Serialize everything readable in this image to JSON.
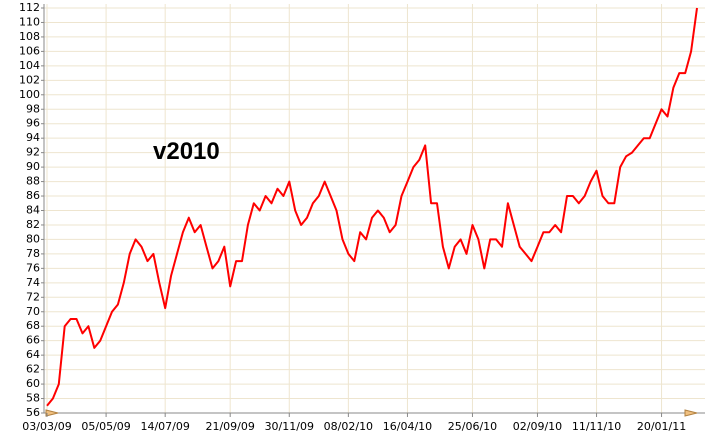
{
  "chart_data": {
    "type": "line",
    "annotation": "v2010",
    "color": "#ff0000",
    "grid": true,
    "categories": [
      "03/03/09",
      null,
      null,
      null,
      null,
      null,
      null,
      null,
      null,
      null,
      "05/05/09",
      null,
      null,
      null,
      null,
      null,
      null,
      null,
      null,
      null,
      "14/07/09",
      null,
      null,
      null,
      null,
      null,
      null,
      null,
      null,
      null,
      null,
      "21/09/09",
      null,
      null,
      null,
      null,
      null,
      null,
      null,
      null,
      null,
      "30/11/09",
      null,
      null,
      null,
      null,
      null,
      null,
      null,
      null,
      null,
      "08/02/10",
      null,
      null,
      null,
      null,
      null,
      null,
      null,
      null,
      null,
      "16/04/10",
      null,
      null,
      null,
      null,
      null,
      null,
      null,
      null,
      null,
      null,
      "25/06/10",
      null,
      null,
      null,
      null,
      null,
      null,
      null,
      null,
      null,
      null,
      "02/09/10",
      null,
      null,
      null,
      null,
      null,
      null,
      null,
      null,
      null,
      "11/11/10",
      null,
      null,
      null,
      null,
      null,
      null,
      null,
      null,
      null,
      null,
      "20/01/11",
      null,
      null,
      null,
      null,
      null,
      null
    ],
    "values": [
      57,
      58,
      60,
      68,
      69,
      69,
      67,
      68,
      65,
      66,
      68,
      70,
      71,
      74,
      78,
      80,
      79,
      77,
      78,
      74,
      70.5,
      75,
      78,
      81,
      83,
      81,
      82,
      79,
      76,
      77,
      79,
      73.5,
      77,
      77,
      82,
      85,
      84,
      86,
      85,
      87,
      86,
      88,
      84,
      82,
      83,
      85,
      86,
      88,
      86,
      84,
      80,
      78,
      77,
      81,
      80,
      83,
      84,
      83,
      81,
      82,
      86,
      88,
      90,
      91,
      93,
      85,
      85,
      79,
      76,
      79,
      80,
      78,
      82,
      80,
      76,
      80,
      80,
      79,
      85,
      82,
      79,
      78,
      77,
      79,
      81,
      81,
      82,
      81,
      86,
      86,
      85,
      86,
      88,
      89.5,
      86,
      85,
      85,
      90,
      91.5,
      92,
      93,
      94,
      94,
      96,
      98,
      97,
      101,
      103,
      103,
      106,
      112
    ],
    "ylim": [
      56,
      112
    ],
    "yticks": [
      56,
      58,
      60,
      62,
      64,
      66,
      68,
      70,
      72,
      74,
      76,
      78,
      80,
      82,
      84,
      86,
      88,
      90,
      92,
      94,
      96,
      98,
      100,
      102,
      104,
      106,
      108,
      110,
      112
    ]
  }
}
